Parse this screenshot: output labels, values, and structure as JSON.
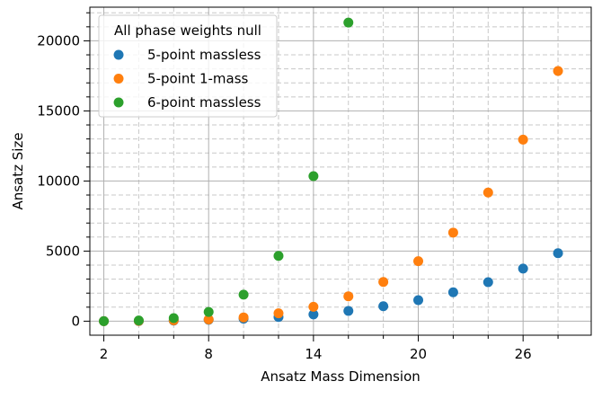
{
  "chart_data": {
    "type": "scatter",
    "xlabel": "Ansatz Mass Dimension",
    "ylabel": "Ansatz Size",
    "xlim": [
      1.2,
      29.9
    ],
    "ylim": [
      -1000,
      22400
    ],
    "x_ticks": [
      2,
      8,
      14,
      20,
      26
    ],
    "x_minor_ticks": [
      4,
      6,
      10,
      12,
      16,
      18,
      22,
      24,
      28
    ],
    "y_ticks": [
      0,
      5000,
      10000,
      15000,
      20000
    ],
    "y_minor_ticks": [
      1000,
      2000,
      3000,
      4000,
      6000,
      7000,
      8000,
      9000,
      11000,
      12000,
      13000,
      14000,
      16000,
      17000,
      18000,
      19000,
      21000,
      22000
    ],
    "grid": "major solid, minor dashed",
    "legend": {
      "title": "All phase weights null",
      "location": "top-left"
    },
    "series": [
      {
        "name": "5-point massless",
        "color": "#1f77b4",
        "x": [
          2,
          4,
          6,
          8,
          10,
          12,
          14,
          16,
          18,
          20,
          22,
          24,
          26,
          28
        ],
        "y": [
          1,
          10,
          40,
          100,
          180,
          300,
          480,
          730,
          1070,
          1500,
          2060,
          2780,
          3750,
          4850
        ]
      },
      {
        "name": "5-point 1-mass",
        "color": "#ff7f0e",
        "x": [
          2,
          4,
          6,
          8,
          10,
          12,
          14,
          16,
          18,
          20,
          22,
          24,
          26,
          28
        ],
        "y": [
          1,
          15,
          60,
          120,
          270,
          560,
          1030,
          1770,
          2800,
          4280,
          6320,
          9180,
          12950,
          17850
        ]
      },
      {
        "name": "6-point massless",
        "color": "#2ca02c",
        "x": [
          2,
          4,
          6,
          8,
          10,
          12,
          14,
          16
        ],
        "y": [
          2,
          50,
          220,
          660,
          1890,
          4660,
          10350,
          21300
        ]
      }
    ]
  }
}
